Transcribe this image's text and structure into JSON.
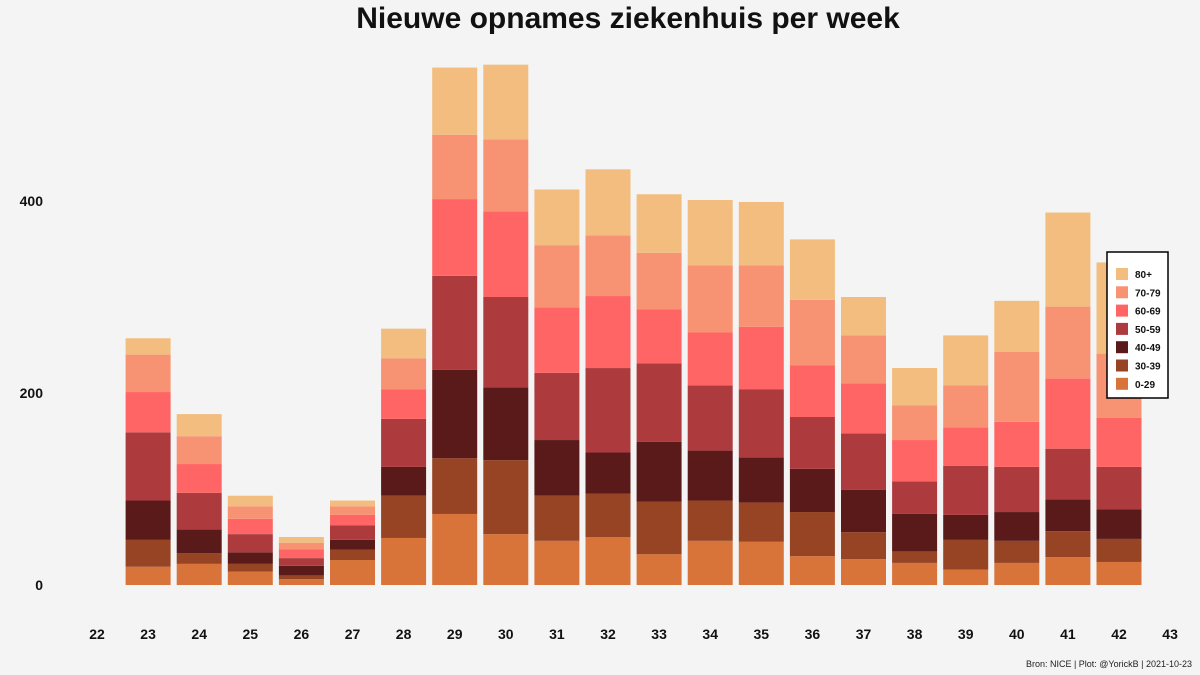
{
  "chart_data": {
    "type": "bar",
    "stacked": true,
    "title": "Nieuwe opnames ziekenhuis per week",
    "caption": "Bron: NICE | Plot: @YorickB |  2021-10-23",
    "xlabel": "",
    "ylabel": "",
    "x_ticks": [
      "22",
      "23",
      "24",
      "25",
      "26",
      "27",
      "28",
      "29",
      "30",
      "31",
      "32",
      "33",
      "34",
      "35",
      "36",
      "37",
      "38",
      "39",
      "40",
      "41",
      "42",
      "43"
    ],
    "y_ticks": [
      0,
      200,
      400
    ],
    "ylim": [
      0,
      540
    ],
    "grid": false,
    "legend_position": "right",
    "categories": [
      "23",
      "24",
      "25",
      "26",
      "27",
      "28",
      "29",
      "30",
      "31",
      "32",
      "33",
      "34",
      "35",
      "36",
      "37",
      "38",
      "39",
      "40",
      "41",
      "42"
    ],
    "series": [
      {
        "name": "0-29",
        "color": "#d8743a",
        "values": [
          19,
          22,
          14,
          6,
          26,
          49,
          74,
          53,
          46,
          50,
          32,
          46,
          45,
          30,
          27,
          23,
          16,
          23,
          29,
          24
        ]
      },
      {
        "name": "30-39",
        "color": "#964424",
        "values": [
          28,
          11,
          8,
          4,
          11,
          44,
          58,
          77,
          47,
          45,
          55,
          42,
          41,
          46,
          28,
          12,
          31,
          23,
          27,
          24
        ]
      },
      {
        "name": "40-49",
        "color": "#5a1a19",
        "values": [
          41,
          25,
          12,
          10,
          10,
          30,
          92,
          76,
          58,
          43,
          62,
          52,
          47,
          45,
          44,
          39,
          26,
          30,
          33,
          31
        ]
      },
      {
        "name": "50-59",
        "color": "#ad3b3e",
        "values": [
          71,
          38,
          19,
          8,
          15,
          50,
          98,
          94,
          70,
          88,
          82,
          68,
          71,
          54,
          59,
          34,
          51,
          47,
          53,
          44
        ]
      },
      {
        "name": "60-69",
        "color": "#ff6565",
        "values": [
          42,
          30,
          16,
          9,
          11,
          31,
          80,
          89,
          68,
          75,
          56,
          55,
          65,
          54,
          52,
          43,
          40,
          47,
          73,
          51
        ]
      },
      {
        "name": "70-79",
        "color": "#f79372",
        "values": [
          39,
          29,
          13,
          7,
          9,
          32,
          67,
          75,
          65,
          63,
          59,
          70,
          64,
          68,
          50,
          36,
          44,
          73,
          75,
          67
        ]
      },
      {
        "name": "80+",
        "color": "#f2bd7e",
        "values": [
          17,
          23,
          11,
          6,
          6,
          31,
          70,
          78,
          58,
          69,
          61,
          68,
          66,
          63,
          40,
          39,
          52,
          53,
          98,
          95
        ]
      }
    ]
  }
}
